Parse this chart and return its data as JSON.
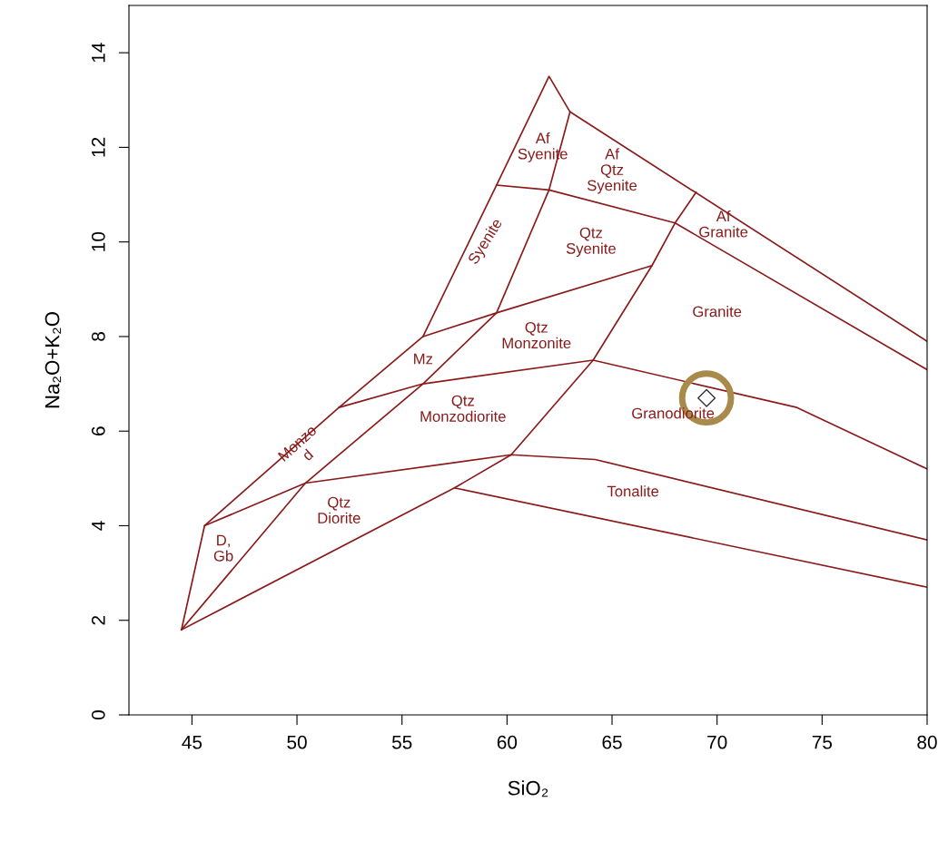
{
  "chart_data": {
    "type": "line",
    "xlabel": "SiO₂",
    "ylabel": "Na₂O+K₂O",
    "xlim": [
      42,
      80
    ],
    "ylim": [
      0,
      15
    ],
    "xticks": [
      45,
      50,
      55,
      60,
      65,
      70,
      75,
      80
    ],
    "yticks": [
      0,
      2,
      4,
      6,
      8,
      10,
      12,
      14
    ],
    "grid": false,
    "legend": false,
    "marker": "none",
    "line_style": "solid",
    "series": [
      {
        "color": "#8b1a1a",
        "x": [
          44.5,
          45.6,
          52,
          56,
          59.5,
          62,
          63,
          80
        ],
        "values": [
          1.8,
          4.0,
          6.5,
          8.0,
          11.2,
          13.5,
          12.75,
          7.9
        ]
      },
      {
        "color": "#8b1a1a",
        "x": [
          45.6,
          50.4,
          60.2,
          64.2,
          80
        ],
        "values": [
          4.0,
          4.9,
          5.5,
          5.4,
          3.7
        ]
      },
      {
        "color": "#8b1a1a",
        "x": [
          52,
          56,
          64.1,
          73.8,
          80
        ],
        "values": [
          6.5,
          7.0,
          7.5,
          6.5,
          5.2
        ]
      },
      {
        "color": "#8b1a1a",
        "x": [
          56,
          59.5,
          66.9
        ],
        "values": [
          8.0,
          8.5,
          9.5
        ]
      },
      {
        "color": "#8b1a1a",
        "x": [
          44.5,
          50.4,
          56,
          59.5,
          62,
          63
        ],
        "values": [
          1.8,
          4.9,
          7.0,
          8.5,
          11.1,
          12.75
        ]
      },
      {
        "color": "#8b1a1a",
        "x": [
          44.5,
          57.5,
          60.2,
          64.1,
          66.9,
          68,
          69
        ],
        "values": [
          1.8,
          4.8,
          5.5,
          7.5,
          9.5,
          10.4,
          11.05
        ]
      },
      {
        "color": "#8b1a1a",
        "x": [
          57.5,
          80
        ],
        "values": [
          4.8,
          2.7
        ]
      },
      {
        "color": "#8b1a1a",
        "x": [
          59.5,
          62,
          68,
          80
        ],
        "values": [
          11.2,
          11.1,
          10.4,
          7.3
        ]
      },
      {
        "type": "scatter",
        "marker": "diamond",
        "color": "#333333",
        "x": [
          69.5
        ],
        "values": [
          6.7
        ]
      }
    ],
    "annotations": [
      "Af\nSyenite",
      "Af\nQtz\nSyenite",
      "Af\nGranite",
      "Syenite",
      "Qtz\nSyenite",
      "Granite",
      "Qtz\nMonzonite",
      "Mz",
      "Qtz\nMonzodiorite",
      "Granodiorite",
      "Monzo\nd",
      "Tonalite",
      "Qtz\nDiorite",
      "D,\nGb"
    ]
  }
}
